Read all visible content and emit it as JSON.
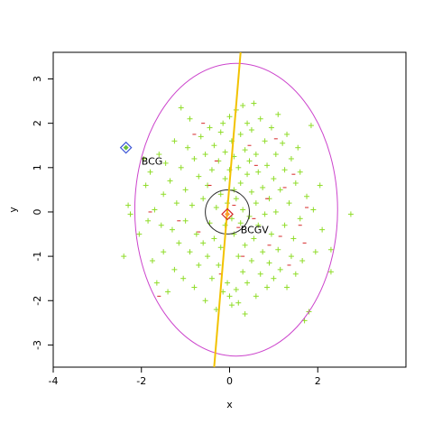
{
  "chart_data": {
    "type": "scatter",
    "xlabel": "x",
    "ylabel": "y",
    "xlim": [
      -4.0,
      4.0
    ],
    "ylim": [
      -3.5,
      3.6
    ],
    "xticks": [
      -4,
      -2,
      0,
      2
    ],
    "yticks": [
      -3,
      -2,
      -1,
      0,
      1,
      2,
      3
    ],
    "grid": false,
    "series": [
      {
        "marker": "+",
        "color": "#8fdc28",
        "points": [
          [
            -2.4,
            -1.0
          ],
          [
            -2.3,
            0.15
          ],
          [
            -2.25,
            -0.05
          ],
          [
            -2.05,
            -0.5
          ],
          [
            -1.95,
            1.2
          ],
          [
            -1.9,
            0.6
          ],
          [
            -1.85,
            -0.2
          ],
          [
            -1.8,
            0.9
          ],
          [
            -1.75,
            -1.1
          ],
          [
            -1.7,
            0.05
          ],
          [
            -1.65,
            -1.6
          ],
          [
            -1.6,
            1.3
          ],
          [
            -1.55,
            -0.3
          ],
          [
            -1.5,
            0.4
          ],
          [
            -1.5,
            -0.9
          ],
          [
            -1.45,
            1.1
          ],
          [
            -1.4,
            -1.8
          ],
          [
            -1.35,
            0.7
          ],
          [
            -1.3,
            -0.4
          ],
          [
            -1.25,
            1.6
          ],
          [
            -1.25,
            -1.3
          ],
          [
            -1.2,
            0.2
          ],
          [
            -1.15,
            -0.7
          ],
          [
            -1.1,
            2.35
          ],
          [
            -1.1,
            1.0
          ],
          [
            -1.05,
            -1.5
          ],
          [
            -1.0,
            0.5
          ],
          [
            -1.0,
            -0.2
          ],
          [
            -0.95,
            1.45
          ],
          [
            -0.9,
            -0.9
          ],
          [
            -0.9,
            2.1
          ],
          [
            -0.85,
            0.15
          ],
          [
            -0.8,
            -1.7
          ],
          [
            -0.8,
            1.2
          ],
          [
            -0.75,
            -0.5
          ],
          [
            -0.7,
            0.8
          ],
          [
            -0.7,
            -1.2
          ],
          [
            -0.65,
            1.7
          ],
          [
            -0.6,
            0.3
          ],
          [
            -0.6,
            -0.7
          ],
          [
            -0.55,
            1.3
          ],
          [
            -0.55,
            -2.0
          ],
          [
            -0.5,
            0.6
          ],
          [
            -0.5,
            -1.0
          ],
          [
            -0.45,
            1.9
          ],
          [
            -0.45,
            -0.25
          ],
          [
            -0.4,
            0.95
          ],
          [
            -0.4,
            -1.5
          ],
          [
            -0.35,
            1.5
          ],
          [
            -0.35,
            -0.6
          ],
          [
            -0.3,
            0.1
          ],
          [
            -0.3,
            -2.2
          ],
          [
            -0.25,
            1.15
          ],
          [
            -0.25,
            -1.2
          ],
          [
            -0.2,
            0.4
          ],
          [
            -0.2,
            1.8
          ],
          [
            -0.2,
            -0.8
          ],
          [
            -0.15,
            2.0
          ],
          [
            -0.15,
            -1.8
          ],
          [
            -0.1,
            0.75
          ],
          [
            -0.1,
            -0.3
          ],
          [
            -0.1,
            1.35
          ],
          [
            -0.05,
            -1.6
          ],
          [
            -0.05,
            0.2
          ],
          [
            0.0,
            2.15
          ],
          [
            0.0,
            -1.9
          ],
          [
            0.0,
            0.95
          ],
          [
            0.05,
            -0.15
          ],
          [
            0.05,
            1.6
          ],
          [
            0.05,
            -2.1
          ],
          [
            0.1,
            0.5
          ],
          [
            0.1,
            -0.5
          ],
          [
            0.1,
            1.25
          ],
          [
            0.15,
            -1.75
          ],
          [
            0.15,
            0.3
          ],
          [
            0.15,
            2.3
          ],
          [
            0.2,
            -1.0
          ],
          [
            0.2,
            1.0
          ],
          [
            0.2,
            -2.05
          ],
          [
            0.25,
            0.65
          ],
          [
            0.25,
            -0.25
          ],
          [
            0.25,
            1.75
          ],
          [
            0.3,
            -1.35
          ],
          [
            0.3,
            0.05
          ],
          [
            0.3,
            2.4
          ],
          [
            0.35,
            -0.75
          ],
          [
            0.35,
            1.4
          ],
          [
            0.35,
            -2.3
          ],
          [
            0.4,
            0.85
          ],
          [
            0.4,
            -1.6
          ],
          [
            0.4,
            2.0
          ],
          [
            0.45,
            -0.1
          ],
          [
            0.45,
            1.15
          ],
          [
            0.5,
            -1.1
          ],
          [
            0.5,
            0.45
          ],
          [
            0.5,
            1.85
          ],
          [
            0.55,
            -0.6
          ],
          [
            0.55,
            2.45
          ],
          [
            0.6,
            0.2
          ],
          [
            0.6,
            -1.9
          ],
          [
            0.6,
            1.3
          ],
          [
            0.65,
            -0.3
          ],
          [
            0.65,
            0.9
          ],
          [
            0.7,
            -1.4
          ],
          [
            0.7,
            2.1
          ],
          [
            0.75,
            0.55
          ],
          [
            0.75,
            -0.9
          ],
          [
            0.8,
            1.6
          ],
          [
            0.8,
            -0.05
          ],
          [
            0.85,
            -1.7
          ],
          [
            0.85,
            1.05
          ],
          [
            0.9,
            0.3
          ],
          [
            0.9,
            -1.15
          ],
          [
            0.95,
            1.9
          ],
          [
            0.95,
            -0.5
          ],
          [
            1.0,
            0.75
          ],
          [
            1.0,
            -1.5
          ],
          [
            1.05,
            1.3
          ],
          [
            1.05,
            0.0
          ],
          [
            1.1,
            -0.85
          ],
          [
            1.1,
            2.2
          ],
          [
            1.15,
            0.5
          ],
          [
            1.15,
            -1.3
          ],
          [
            1.2,
            1.55
          ],
          [
            1.25,
            -0.3
          ],
          [
            1.25,
            0.95
          ],
          [
            1.3,
            -1.7
          ],
          [
            1.3,
            1.75
          ],
          [
            1.35,
            0.2
          ],
          [
            1.4,
            -1.0
          ],
          [
            1.4,
            1.2
          ],
          [
            1.45,
            -0.6
          ],
          [
            1.5,
            0.65
          ],
          [
            1.5,
            -1.4
          ],
          [
            1.55,
            1.45
          ],
          [
            1.6,
            -0.15
          ],
          [
            1.6,
            0.9
          ],
          [
            1.65,
            -1.1
          ],
          [
            1.7,
            -2.45
          ],
          [
            1.75,
            0.35
          ],
          [
            1.8,
            -2.25
          ],
          [
            1.85,
            1.95
          ],
          [
            1.9,
            0.05
          ],
          [
            1.95,
            -0.9
          ],
          [
            2.05,
            0.6
          ],
          [
            2.1,
            -0.4
          ],
          [
            2.3,
            -0.85
          ],
          [
            2.3,
            -1.35
          ],
          [
            2.75,
            -0.05
          ]
        ]
      },
      {
        "marker": "-",
        "color": "#d62728",
        "points": [
          [
            -1.8,
            0.0
          ],
          [
            -1.6,
            -1.9
          ],
          [
            -1.15,
            -0.2
          ],
          [
            -0.8,
            1.75
          ],
          [
            -0.7,
            -0.45
          ],
          [
            -0.6,
            2.0
          ],
          [
            -0.45,
            0.6
          ],
          [
            -0.3,
            1.15
          ],
          [
            -0.2,
            -1.4
          ],
          [
            0.1,
            0.15
          ],
          [
            0.2,
            -0.35
          ],
          [
            0.3,
            -1.0
          ],
          [
            0.45,
            1.5
          ],
          [
            0.55,
            -0.15
          ],
          [
            0.6,
            1.05
          ],
          [
            0.85,
            0.3
          ],
          [
            0.9,
            -0.75
          ],
          [
            1.05,
            1.65
          ],
          [
            1.15,
            -0.55
          ],
          [
            1.25,
            0.55
          ],
          [
            1.35,
            -1.2
          ],
          [
            1.45,
            0.85
          ],
          [
            1.6,
            -0.3
          ],
          [
            1.75,
            0.1
          ],
          [
            1.7,
            -0.7
          ]
        ]
      }
    ],
    "ellipse": {
      "cx": 0.15,
      "cy": 0.05,
      "rx": 2.3,
      "ry": 3.3,
      "color": "#cc44cc"
    },
    "circle": {
      "cx": -0.05,
      "cy": 0.0,
      "r": 0.5,
      "color": "#2a2a2a"
    },
    "line": {
      "x1": 0.25,
      "y1": 3.6,
      "x2": -0.35,
      "y2": -3.5,
      "color": "#f2c200"
    },
    "annotations": [
      {
        "label": "BCG",
        "x": -2.35,
        "y": 1.45,
        "marker_color": "#3b55d6",
        "inner_color": "#6bbf3a",
        "text_dx": 0.35,
        "text_dy": -0.3
      },
      {
        "label": "BCGV",
        "x": -0.05,
        "y": -0.05,
        "marker_color": "#d62728",
        "inner_color": "#ff9a2e",
        "text_dx": 0.3,
        "text_dy": -0.35
      }
    ]
  }
}
